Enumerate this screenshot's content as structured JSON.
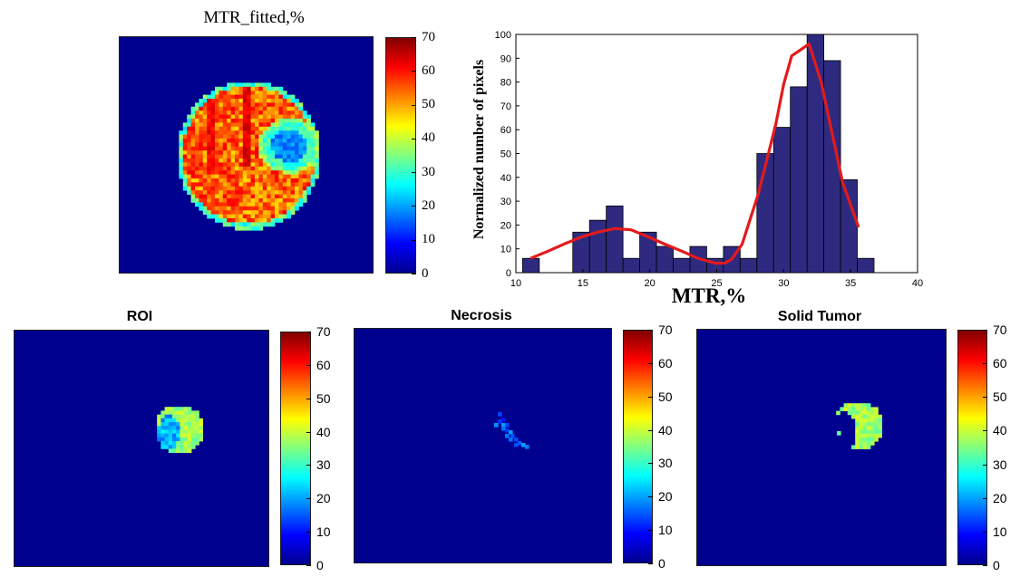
{
  "panels": {
    "fitted": {
      "title": "MTR_fitted,%"
    },
    "roi": {
      "title": "ROI"
    },
    "necrosis": {
      "title": "Necrosis"
    },
    "solid": {
      "title": "Solid Tumor"
    }
  },
  "colorbar": {
    "colormap": "jet",
    "min": 0,
    "max": 70,
    "ticks": [
      "0",
      "10",
      "20",
      "30",
      "40",
      "50",
      "60",
      "70"
    ]
  },
  "colors": {
    "map_background": "#00008f",
    "bar_fill": "#2e2a80",
    "fit_line": "#e31a1c"
  },
  "chart_data": {
    "type": "bar",
    "xlabel": "MTR,%",
    "ylabel": "Normalized number of pixels",
    "xlim": [
      10,
      40
    ],
    "ylim": [
      0,
      100
    ],
    "xticks": [
      10,
      15,
      20,
      25,
      30,
      35,
      40
    ],
    "yticks": [
      0,
      10,
      20,
      30,
      40,
      50,
      60,
      70,
      80,
      90,
      100
    ],
    "bin_width": 1.25,
    "bars": [
      {
        "x": 11.125,
        "value": 6
      },
      {
        "x": 12.375,
        "value": 0
      },
      {
        "x": 13.625,
        "value": 0
      },
      {
        "x": 14.875,
        "value": 17
      },
      {
        "x": 16.125,
        "value": 22
      },
      {
        "x": 17.375,
        "value": 28
      },
      {
        "x": 18.625,
        "value": 6
      },
      {
        "x": 19.875,
        "value": 17
      },
      {
        "x": 21.125,
        "value": 11
      },
      {
        "x": 22.375,
        "value": 6
      },
      {
        "x": 23.625,
        "value": 11
      },
      {
        "x": 24.875,
        "value": 6
      },
      {
        "x": 26.125,
        "value": 11
      },
      {
        "x": 27.375,
        "value": 6
      },
      {
        "x": 28.625,
        "value": 50
      },
      {
        "x": 29.875,
        "value": 61
      },
      {
        "x": 31.125,
        "value": 78
      },
      {
        "x": 32.375,
        "value": 100
      },
      {
        "x": 33.625,
        "value": 89
      },
      {
        "x": 34.875,
        "value": 39
      },
      {
        "x": 36.125,
        "value": 6
      }
    ],
    "fit_curve": [
      [
        11.1,
        6
      ],
      [
        12.4,
        9
      ],
      [
        13.6,
        12
      ],
      [
        14.9,
        15
      ],
      [
        16.1,
        17
      ],
      [
        17.4,
        18.5
      ],
      [
        18.6,
        18
      ],
      [
        19.9,
        15
      ],
      [
        21.1,
        12
      ],
      [
        22.4,
        9
      ],
      [
        23.6,
        6
      ],
      [
        24.9,
        4
      ],
      [
        25.6,
        4
      ],
      [
        26.1,
        5.5
      ],
      [
        26.9,
        12
      ],
      [
        28.1,
        33
      ],
      [
        29.4,
        62
      ],
      [
        30.0,
        79
      ],
      [
        30.6,
        91
      ],
      [
        31.9,
        96
      ],
      [
        32.8,
        80
      ],
      [
        34.4,
        38
      ],
      [
        35.6,
        19
      ]
    ]
  }
}
